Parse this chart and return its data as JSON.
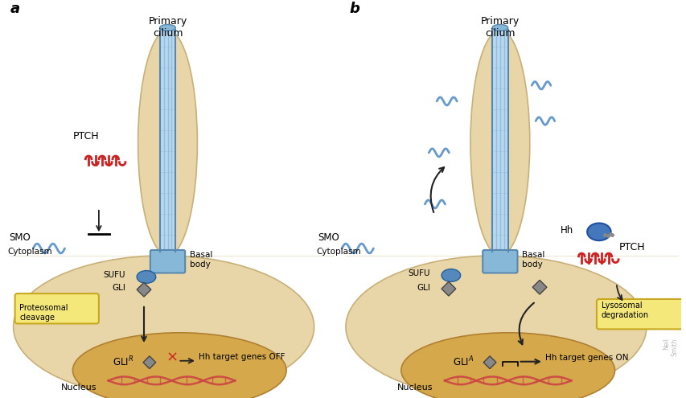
{
  "bg_color": "#ffffff",
  "cell_color": "#e8d5a8",
  "cell_edge": "#c8b078",
  "nucleus_color": "#d4a84b",
  "nucleus_edge": "#b08030",
  "cilium_light": "#b8d8f0",
  "cilium_mid": "#88b8d8",
  "cilium_dark": "#5888b0",
  "basal_color": "#5898c8",
  "smo_blue": "#6699cc",
  "sufu_blue": "#5588bb",
  "gli_gray": "#888888",
  "red_color": "#cc2222",
  "hh_blue": "#4477bb",
  "arrow_color": "#222222",
  "box_fill": "#f5e87a",
  "box_edge": "#c8a820",
  "dna_color": "#cc4444",
  "watermark": "#aaaaaa",
  "label_a": "a",
  "label_b": "b",
  "primary_cilium": "Primary\ncilium",
  "ptch_label": "PTCH",
  "smo_label": "SMO",
  "cytoplasm_label": "Cytoplasm",
  "sufu_label": "SUFU",
  "gli_label": "GLI",
  "basal_label": "Basal\nbody",
  "proto_label": "Proteosomal\ncleavage",
  "lyso_label": "Lysosomal\ndegradation",
  "hh_off": "Hh target genes OFF",
  "hh_on": "Hh target genes ON",
  "nucleus_label": "Nucleus",
  "hh_label": "Hh"
}
